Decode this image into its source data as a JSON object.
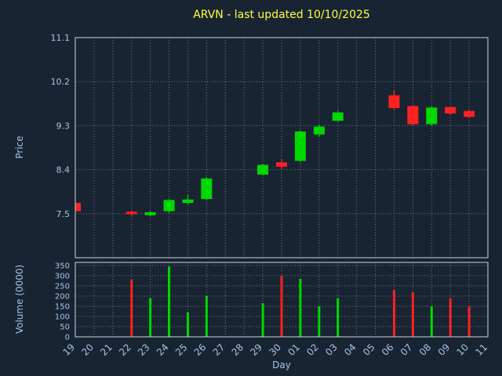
{
  "chart_data": {
    "type": "candlestick",
    "title": "ARVN - last updated 10/10/2025",
    "xlabel": "Day",
    "price_ylabel": "Price",
    "volume_ylabel": "Volume (0000)",
    "x_ticks": [
      "19",
      "20",
      "21",
      "22",
      "23",
      "24",
      "25",
      "26",
      "27",
      "28",
      "29",
      "30",
      "01",
      "02",
      "03",
      "04",
      "05",
      "06",
      "07",
      "08",
      "09",
      "10",
      "11"
    ],
    "price_ticks": [
      "7.5",
      "8.4",
      "9.3",
      "10.2",
      "11.1"
    ],
    "price_ylim": [
      6.6,
      11.1
    ],
    "volume_ticks": [
      "0",
      "50",
      "100",
      "150",
      "200",
      "250",
      "300",
      "350"
    ],
    "volume_ylim": [
      0,
      365
    ],
    "grid": true,
    "legend": "none",
    "colors": {
      "up": "#00d800",
      "down": "#ff2222",
      "background": "#182432",
      "title": "#ffff44",
      "label": "#a8c4e4",
      "grid": "#b8c4d0",
      "spine": "#c8d4e0"
    },
    "candles": [
      {
        "day": "19",
        "open": 7.72,
        "high": 7.73,
        "low": 7.53,
        "close": 7.55,
        "volume": 0
      },
      {
        "day": "22",
        "open": 7.54,
        "high": 7.57,
        "low": 7.44,
        "close": 7.49,
        "volume": 280
      },
      {
        "day": "23",
        "open": 7.47,
        "high": 7.55,
        "low": 7.45,
        "close": 7.53,
        "volume": 190
      },
      {
        "day": "24",
        "open": 7.55,
        "high": 7.8,
        "low": 7.52,
        "close": 7.78,
        "volume": 345
      },
      {
        "day": "25",
        "open": 7.72,
        "high": 7.88,
        "low": 7.7,
        "close": 7.79,
        "volume": 120
      },
      {
        "day": "26",
        "open": 7.8,
        "high": 8.25,
        "low": 7.78,
        "close": 8.22,
        "volume": 200
      },
      {
        "day": "29",
        "open": 8.3,
        "high": 8.52,
        "low": 8.28,
        "close": 8.5,
        "volume": 165
      },
      {
        "day": "30",
        "open": 8.55,
        "high": 8.62,
        "low": 8.4,
        "close": 8.46,
        "volume": 300
      },
      {
        "day": "01",
        "open": 8.58,
        "high": 9.2,
        "low": 8.55,
        "close": 9.18,
        "volume": 285
      },
      {
        "day": "02",
        "open": 9.12,
        "high": 9.32,
        "low": 9.08,
        "close": 9.28,
        "volume": 150
      },
      {
        "day": "03",
        "open": 9.4,
        "high": 9.6,
        "low": 9.38,
        "close": 9.57,
        "volume": 190
      },
      {
        "day": "06",
        "open": 9.92,
        "high": 10.02,
        "low": 9.62,
        "close": 9.66,
        "volume": 230
      },
      {
        "day": "07",
        "open": 9.7,
        "high": 9.72,
        "low": 9.3,
        "close": 9.33,
        "volume": 220
      },
      {
        "day": "08",
        "open": 9.33,
        "high": 9.7,
        "low": 9.3,
        "close": 9.67,
        "volume": 150
      },
      {
        "day": "09",
        "open": 9.68,
        "high": 9.7,
        "low": 9.52,
        "close": 9.55,
        "volume": 190
      },
      {
        "day": "10",
        "open": 9.6,
        "high": 9.62,
        "low": 9.45,
        "close": 9.48,
        "volume": 150
      }
    ]
  }
}
